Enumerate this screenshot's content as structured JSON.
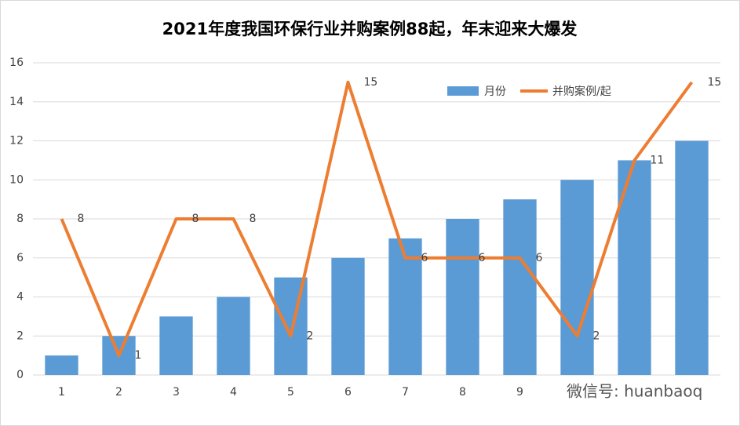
{
  "chart_data": {
    "type": "combo",
    "title": "2021年度我国环保行业并购案例88起，年末迎来大爆发",
    "categories": [
      "1",
      "2",
      "3",
      "4",
      "5",
      "6",
      "7",
      "8",
      "9",
      null,
      null,
      null
    ],
    "series": [
      {
        "name": "月份",
        "type": "bar",
        "color": "#5b9bd5",
        "values": [
          1,
          2,
          3,
          4,
          5,
          6,
          7,
          8,
          9,
          10,
          11,
          12
        ]
      },
      {
        "name": "并购案例/起",
        "type": "line",
        "color": "#ed7d31",
        "values": [
          8,
          1,
          8,
          8,
          2,
          15,
          6,
          6,
          6,
          2,
          11,
          15
        ],
        "data_labels": true
      }
    ],
    "ylim": [
      0,
      16
    ],
    "yticks": [
      0,
      2,
      4,
      6,
      8,
      10,
      12,
      14,
      16
    ],
    "grid": true,
    "legend": "top-right",
    "watermark": "微信号: huanbaoq"
  }
}
